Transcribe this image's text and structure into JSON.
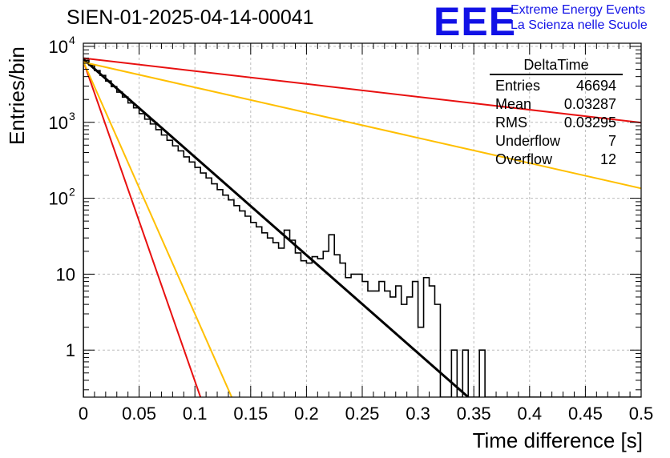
{
  "header": {
    "title": "SIEN-01-2025-04-14-00041",
    "logo_text": "EEE",
    "logo_line1": "Extreme Energy Events",
    "logo_line2": "La Scienza nelle Scuole"
  },
  "stats_box": {
    "title": "DeltaTime",
    "rows": [
      {
        "label": "Entries",
        "value": "46694"
      },
      {
        "label": "Mean",
        "value": "0.03287"
      },
      {
        "label": "RMS",
        "value": "0.03295"
      },
      {
        "label": "Underflow",
        "value": "7"
      },
      {
        "label": "Overflow",
        "value": "12"
      }
    ]
  },
  "chart_data": {
    "type": "histogram",
    "title": "SIEN-01-2025-04-14-00041",
    "xlabel": "Time difference [s]",
    "ylabel": "Entries/bin",
    "xlim": [
      0,
      0.5
    ],
    "ylim_log": [
      0.24,
      11000
    ],
    "y_scale": "log",
    "grid": true,
    "x_ticks": [
      "0",
      "0.05",
      "0.1",
      "0.15",
      "0.2",
      "0.25",
      "0.3",
      "0.35",
      "0.4",
      "0.45",
      "0.5"
    ],
    "y_ticks": [
      {
        "value": 1,
        "label": "1"
      },
      {
        "value": 10,
        "label": "10"
      },
      {
        "value": 100,
        "label": "10",
        "exp": "2"
      },
      {
        "value": 1000,
        "label": "10",
        "exp": "3"
      },
      {
        "value": 10000,
        "label": "10",
        "exp": "4"
      }
    ],
    "bin_width": 0.005,
    "histogram": {
      "color": "#000000",
      "counts": [
        6550,
        5650,
        4800,
        4150,
        3500,
        2950,
        2500,
        2150,
        1800,
        1550,
        1300,
        1100,
        950,
        800,
        680,
        580,
        490,
        420,
        350,
        300,
        255,
        215,
        185,
        155,
        130,
        110,
        95,
        80,
        68,
        58,
        48,
        42,
        35,
        30,
        26,
        22,
        38,
        28,
        19,
        15,
        14,
        17,
        16,
        20,
        33,
        18,
        14,
        9,
        10,
        10,
        8,
        6,
        6,
        8,
        6,
        5,
        7,
        4,
        5,
        8,
        2,
        9,
        7,
        4,
        0,
        0,
        1,
        0,
        1,
        0,
        0,
        1,
        0,
        0,
        0,
        0,
        0,
        0,
        0,
        0,
        0,
        0,
        0,
        0,
        0,
        0,
        0,
        0,
        0,
        0,
        0,
        0,
        0,
        0,
        0,
        0,
        0,
        0,
        0,
        0
      ]
    },
    "curves": [
      {
        "name": "fit",
        "color": "#000000",
        "width": 3,
        "x": [
          0,
          0.345
        ],
        "y": [
          6800,
          0.24
        ]
      },
      {
        "name": "red-steep",
        "color": "#e81010",
        "width": 2,
        "x": [
          0,
          0.105
        ],
        "y": [
          6400,
          0.24
        ]
      },
      {
        "name": "yellow-steep",
        "color": "#ffbf00",
        "width": 2,
        "x": [
          0,
          0.133
        ],
        "y": [
          6300,
          0.24
        ]
      },
      {
        "name": "red-shallow",
        "color": "#e81010",
        "width": 2,
        "x": [
          0,
          0.5
        ],
        "y": [
          7000,
          990
        ]
      },
      {
        "name": "yellow-shallow",
        "color": "#ffbf00",
        "width": 2,
        "x": [
          0,
          0.5
        ],
        "y": [
          6200,
          135
        ]
      }
    ]
  },
  "colors": {
    "grid": "#bcbcbc",
    "axis": "#000000",
    "accent": "#1111e6"
  }
}
